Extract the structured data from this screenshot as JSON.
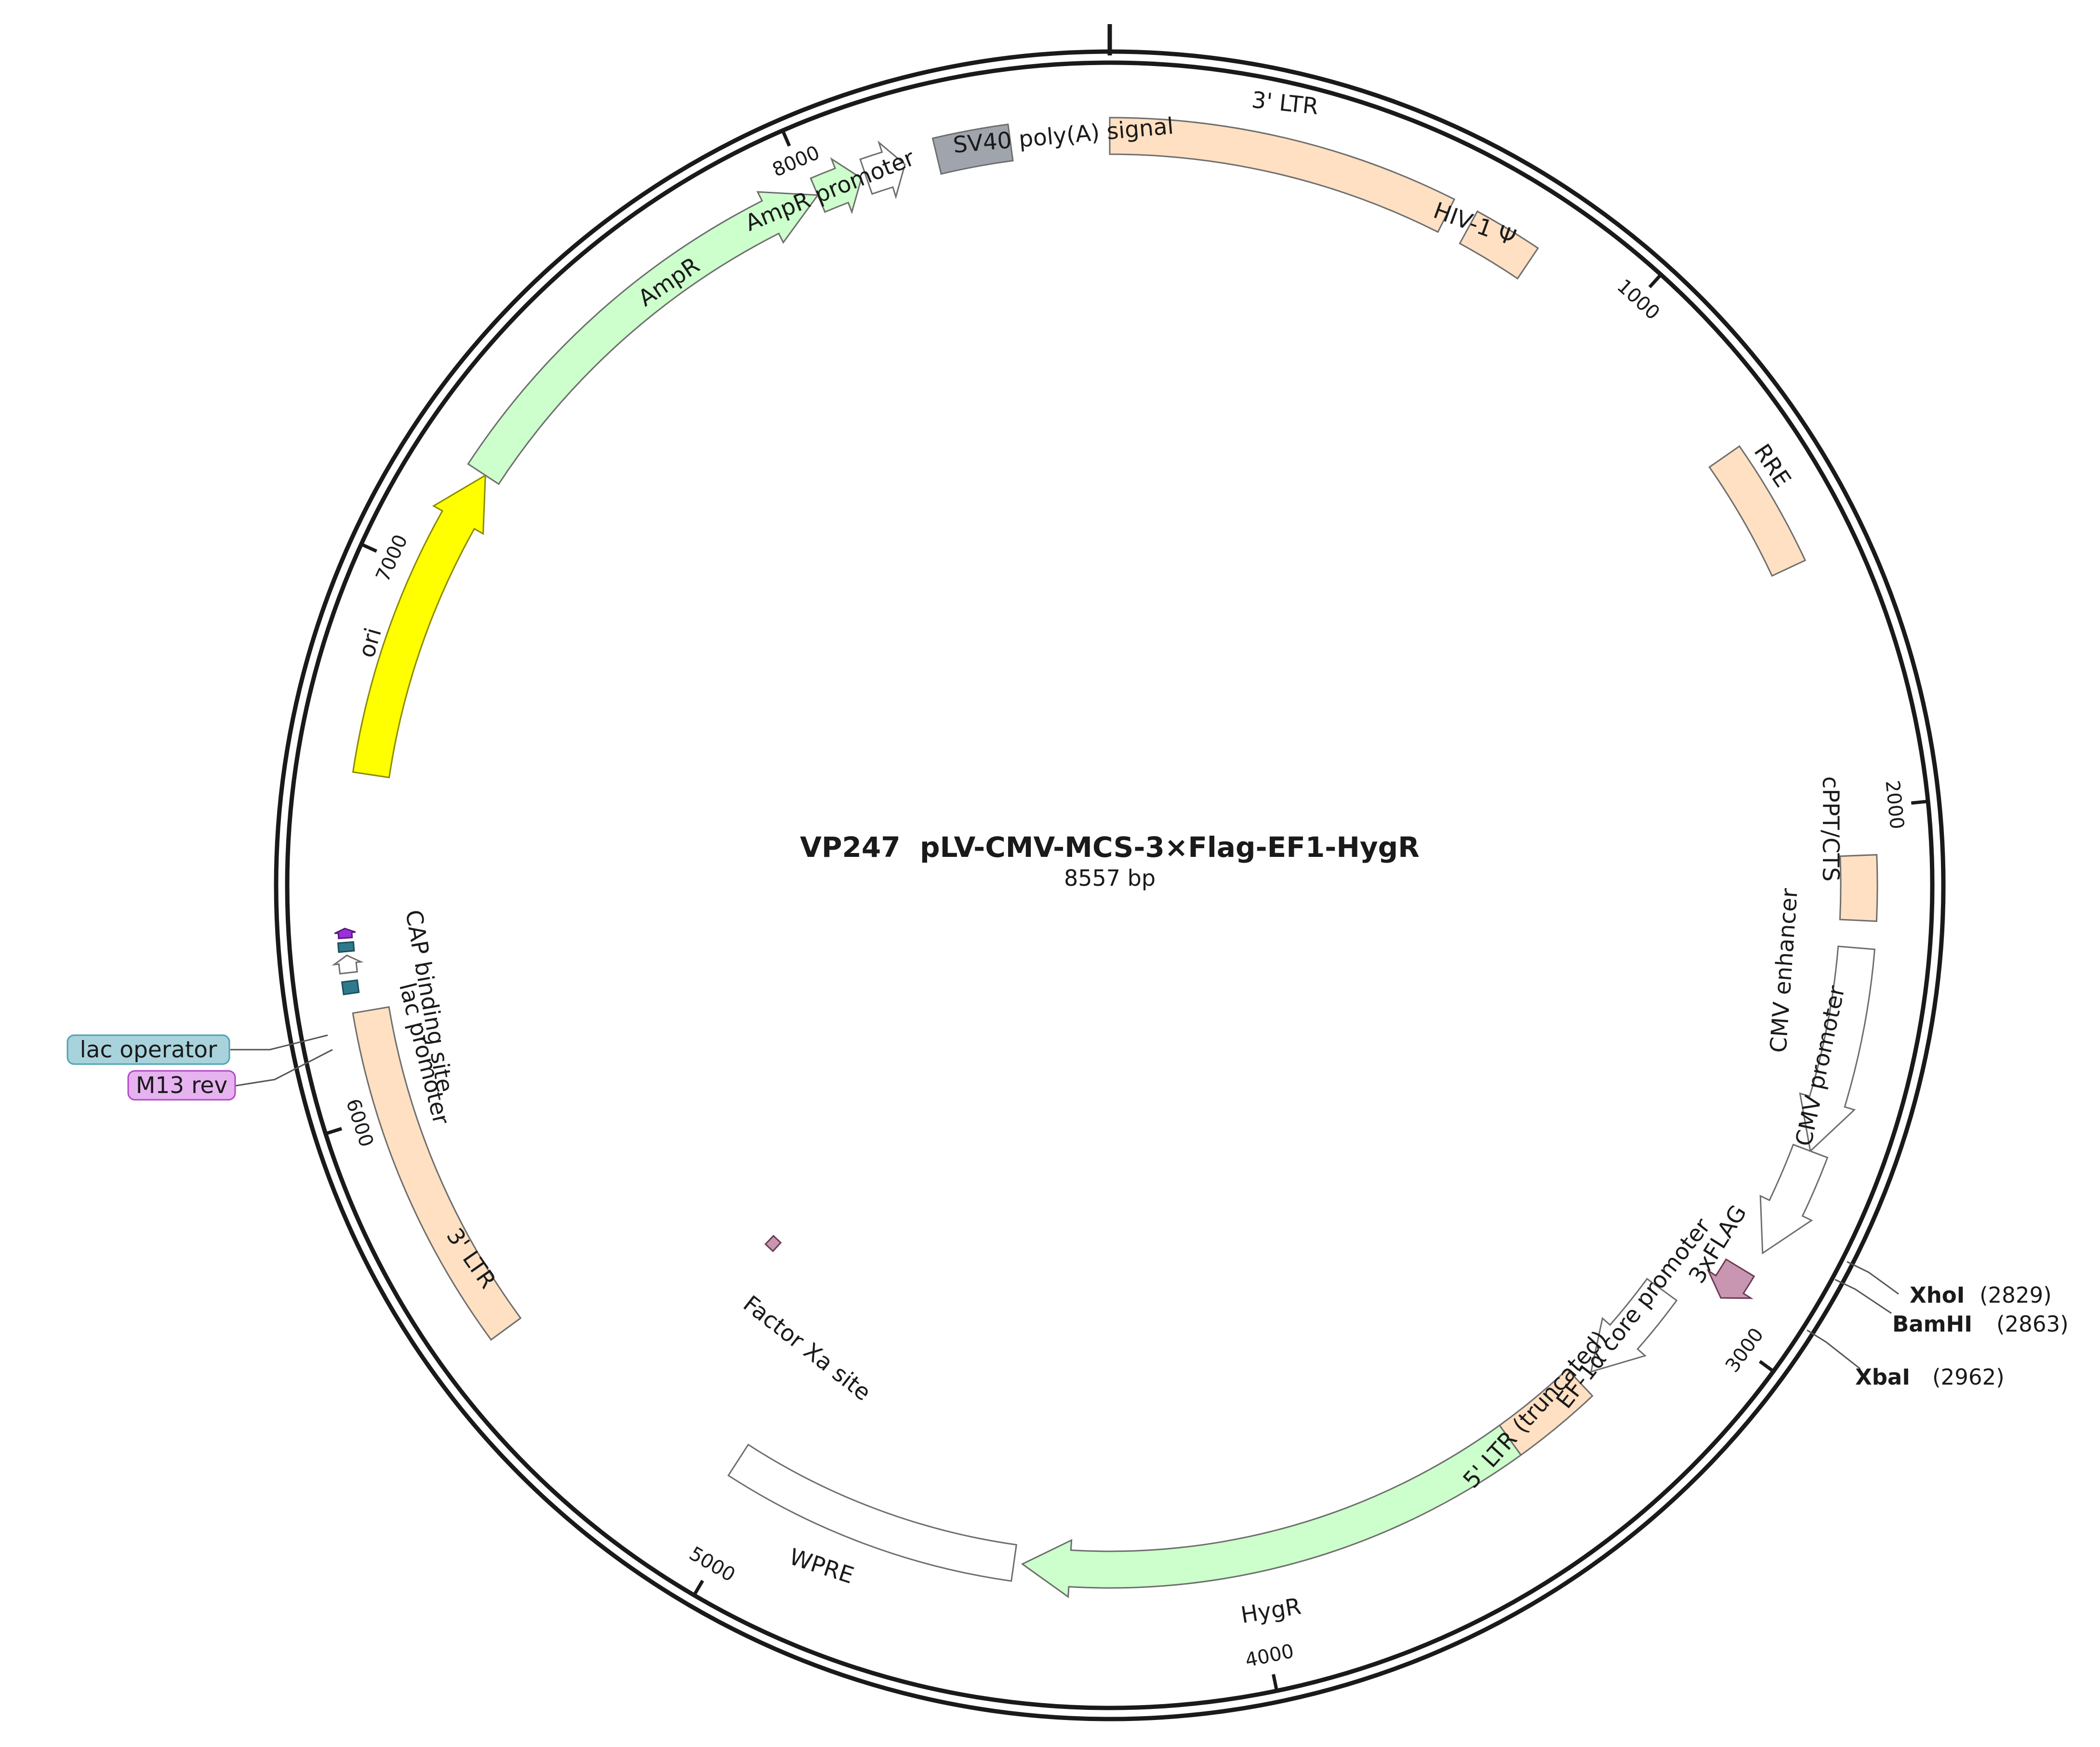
{
  "map": {
    "name": "VP247  pLV-CMV-MCS-3×Flag-EF1-HygR",
    "length_label": "8557 bp",
    "length_bp": 8557
  },
  "ticks": [
    {
      "bp": 1000,
      "label": "1000"
    },
    {
      "bp": 2000,
      "label": "2000"
    },
    {
      "bp": 3000,
      "label": "3000"
    },
    {
      "bp": 4000,
      "label": "4000"
    },
    {
      "bp": 5000,
      "label": "5000"
    },
    {
      "bp": 6000,
      "label": "6000"
    },
    {
      "bp": 7000,
      "label": "7000"
    },
    {
      "bp": 8000,
      "label": "8000"
    }
  ],
  "features": [
    {
      "id": "ltr3-top",
      "label": "3' LTR",
      "color": "#ffe0c2",
      "start": 0,
      "end": 634,
      "direction": "none"
    },
    {
      "id": "hiv1-psi",
      "label": "HIV-1 Ψ",
      "color": "#ffe0c2",
      "start": 680,
      "end": 806,
      "direction": "none"
    },
    {
      "id": "rre",
      "label": "RRE",
      "color": "#ffe0c2",
      "start": 1310,
      "end": 1544,
      "direction": "none"
    },
    {
      "id": "cppt-cts",
      "label": "cPPT/CTS",
      "color": "#ffe0c2",
      "start": 2085,
      "end": 2203,
      "direction": "none"
    },
    {
      "id": "cmv-enhancer",
      "label": "CMV enhancer",
      "color": "#ffffff",
      "start": 2253,
      "end": 2633,
      "direction": "forward"
    },
    {
      "id": "cmv-promoter",
      "label": "CMV promoter",
      "color": "#ffffff",
      "start": 2633,
      "end": 2838,
      "direction": "forward"
    },
    {
      "id": "flag3x",
      "label": "3xFLAG",
      "color": "#c896b0",
      "start": 2882,
      "end": 2948,
      "direction": "forward"
    },
    {
      "id": "ef1a-core",
      "label": "EF-1α core promoter",
      "color": "#ffffff",
      "start": 3000,
      "end": 3216,
      "direction": "forward"
    },
    {
      "id": "ltr5-trunc",
      "label": "5' LTR (truncated)",
      "color": "#ffe0c2",
      "start": 3247,
      "end": 3427,
      "direction": "none"
    },
    {
      "id": "hygr",
      "label": "HygR",
      "color": "#ccffcc",
      "start": 3427,
      "end": 4453,
      "direction": "forward"
    },
    {
      "id": "wpre",
      "label": "WPRE",
      "color": "#ffffff",
      "start": 4470,
      "end": 5060,
      "direction": "none"
    },
    {
      "id": "factor-xa",
      "label": "Factor Xa site",
      "color": "#c896b0",
      "start": 5292,
      "end": 5320,
      "direction": "none"
    },
    {
      "id": "ltr3-left",
      "label": "3' LTR",
      "color": "#ffe0c2",
      "start": 5555,
      "end": 6190,
      "direction": "none"
    },
    {
      "id": "cap-site",
      "label": "CAP binding site",
      "color": "#2e7a8c",
      "start": 6225,
      "end": 6247,
      "direction": "none"
    },
    {
      "id": "lac-promoter",
      "label": "lac promoter",
      "color": "#ffffff",
      "start": 6262,
      "end": 6293,
      "direction": "forward"
    },
    {
      "id": "lac-operator",
      "label": "lac operator",
      "color": "#2e7a8c",
      "start": 6300,
      "end": 6316,
      "direction": "none"
    },
    {
      "id": "m13-rev",
      "label": "M13 rev",
      "color": "#9a30d8",
      "start": 6324,
      "end": 6341,
      "direction": "forward"
    },
    {
      "id": "ori",
      "label": "ori",
      "color": "#ffff00",
      "start": 6620,
      "end": 7209,
      "direction": "forward"
    },
    {
      "id": "ampr",
      "label": "AmpR",
      "color": "#ccffcc",
      "start": 7209,
      "end": 8012,
      "direction": "forward"
    },
    {
      "id": "ampr-promoter",
      "label": "AmpR promoter",
      "color": "#ccffcc",
      "start": 8012,
      "end": 8097,
      "direction": "forward"
    },
    {
      "id": "ampr-promoter-head",
      "label": "",
      "color": "#ffffff",
      "start": 8106,
      "end": 8180,
      "direction": "forward"
    },
    {
      "id": "sv40-polya",
      "label": "SV40 poly(A) signal",
      "color": "#a0a5ad",
      "start": 8240,
      "end": 8376,
      "direction": "none"
    }
  ],
  "sites": [
    {
      "id": "xhoi",
      "name": "XhoI",
      "position_label": "(2829)",
      "bp": 2829
    },
    {
      "id": "bamhi",
      "name": "BamHI",
      "position_label": "(2863)",
      "bp": 2863
    },
    {
      "id": "xbai",
      "name": "XbaI",
      "position_label": "(2962)",
      "bp": 2962
    }
  ],
  "tags": [
    {
      "id": "lac-operator",
      "label": "lac operator",
      "color": "#a9d3dc",
      "border": "#4aa3b4"
    },
    {
      "id": "m13-rev",
      "label": "M13 rev",
      "color": "#e6b3f0",
      "border": "#b446c8"
    }
  ]
}
